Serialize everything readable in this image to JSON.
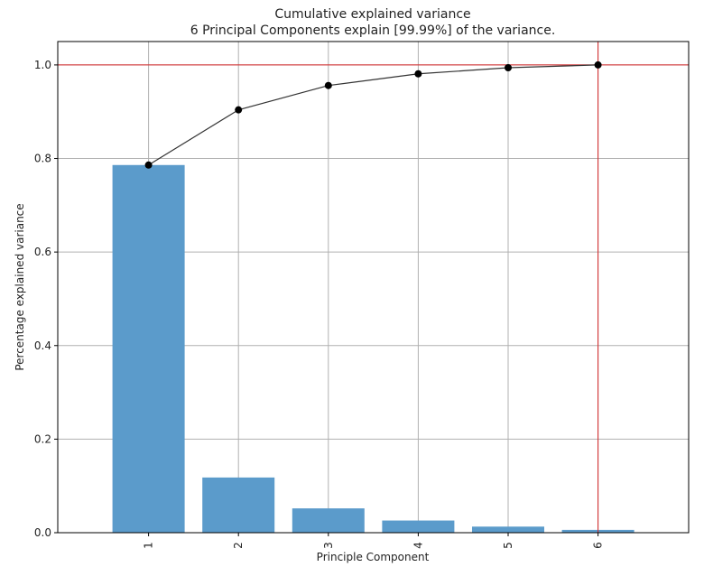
{
  "chart_data": {
    "type": "bar",
    "title_line1": "Cumulative explained variance",
    "title_line2": "6 Principal Components explain [99.99%] of the variance.",
    "xlabel": "Principle Component",
    "ylabel": "Percentage explained variance",
    "categories": [
      "1",
      "2",
      "3",
      "4",
      "5",
      "6"
    ],
    "series": [
      {
        "type": "bar",
        "values": [
          0.786,
          0.118,
          0.052,
          0.026,
          0.013,
          0.006
        ]
      },
      {
        "type": "line",
        "values": [
          0.786,
          0.904,
          0.956,
          0.981,
          0.994,
          1.0
        ]
      }
    ],
    "reference_lines": {
      "horizontal_y": 1.0,
      "vertical_x": "6"
    },
    "ylim": [
      0,
      1.05
    ],
    "yticks": [
      "0.0",
      "0.2",
      "0.4",
      "0.6",
      "0.8",
      "1.0"
    ],
    "grid": true,
    "colors": {
      "bar": "#5b9bcb",
      "line": "#333333",
      "marker": "#000000",
      "reference": "#d62728",
      "grid": "#b0b0b0"
    }
  }
}
